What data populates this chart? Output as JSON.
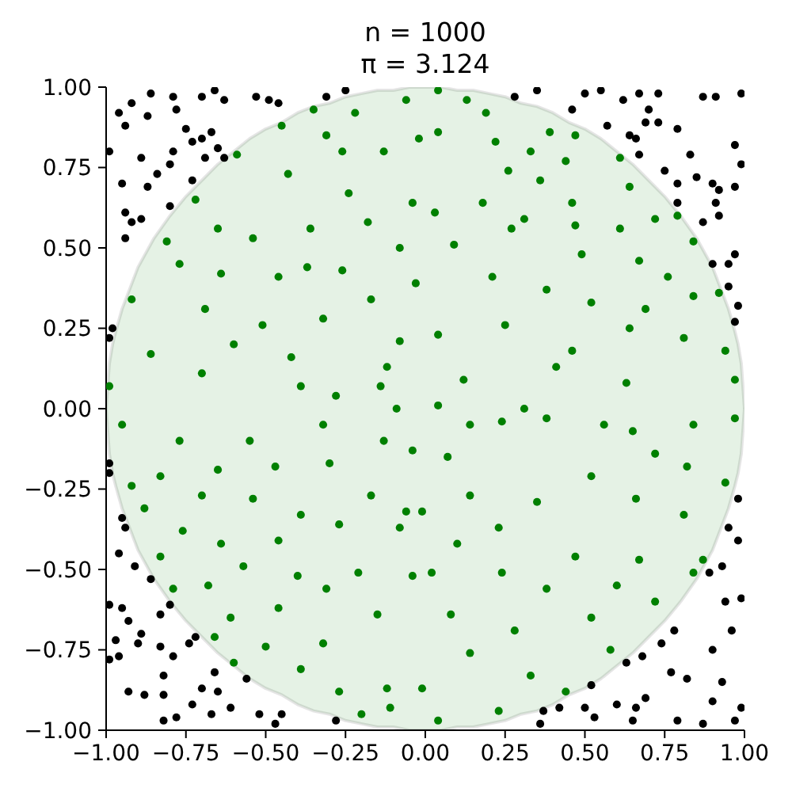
{
  "chart_data": {
    "type": "scatter",
    "title": "n = 1000",
    "subtitle": "π = 3.124",
    "marker": "circle",
    "xlim": [
      -1,
      1
    ],
    "ylim": [
      -1,
      1
    ],
    "xticks": [
      {
        "value": -1,
        "label": "−1.00"
      },
      {
        "value": -0.75,
        "label": "−0.75"
      },
      {
        "value": -0.5,
        "label": "−0.50"
      },
      {
        "value": -0.25,
        "label": "−0.25"
      },
      {
        "value": 0,
        "label": "0.00"
      },
      0.25,
      {
        "value": 0.5,
        "label": "0.50"
      },
      0.75,
      {
        "value": 1,
        "label": "1.00"
      }
    ],
    "yticks": [
      {
        "value": -1,
        "label": "−1.00"
      },
      {
        "value": -0.75,
        "label": "−0.75"
      },
      {
        "value": -0.5,
        "label": "−0.50"
      },
      {
        "value": -0.25,
        "label": "−0.25"
      },
      {
        "value": 0,
        "label": "0.00"
      },
      0.25,
      {
        "value": 0.5,
        "label": "0.50"
      },
      0.75,
      {
        "value": 1,
        "label": "1.00"
      }
    ],
    "series": [
      {
        "type": "area",
        "color": "#e5f2e5",
        "marker": "none",
        "x": [
          -1,
          -0.99,
          -0.98,
          -0.97,
          -0.95,
          -0.9,
          -0.85,
          -0.8,
          -0.75,
          -0.7,
          -0.65,
          -0.6,
          -0.55,
          -0.5,
          -0.45,
          -0.4,
          -0.35,
          -0.3,
          -0.25,
          -0.2,
          -0.15,
          -0.1,
          -0.05,
          0,
          0.05,
          0.1,
          0.15,
          0.2,
          0.25,
          0.3,
          0.35,
          0.4,
          0.45,
          0.5,
          0.55,
          0.6,
          0.65,
          0.7,
          0.75,
          0.8,
          0.85,
          0.9,
          0.95,
          0.97,
          0.98,
          0.99,
          1
        ],
        "values": [
          0,
          0.14,
          0.2,
          0.24,
          0.31,
          0.44,
          0.53,
          0.6,
          0.66,
          0.71,
          0.76,
          0.8,
          0.84,
          0.87,
          0.89,
          0.92,
          0.94,
          0.95,
          0.97,
          0.98,
          0.99,
          0.99,
          1,
          1,
          1,
          0.99,
          0.99,
          0.98,
          0.97,
          0.95,
          0.94,
          0.92,
          0.89,
          0.87,
          0.84,
          0.8,
          0.76,
          0.71,
          0.66,
          0.6,
          0.53,
          0.44,
          0.31,
          0.24,
          0.2,
          0.14,
          0
        ]
      },
      {
        "type": "area",
        "color": "#e5f2e5",
        "marker": "none",
        "x": [
          -1,
          -0.99,
          -0.98,
          -0.97,
          -0.95,
          -0.9,
          -0.85,
          -0.8,
          -0.75,
          -0.7,
          -0.65,
          -0.6,
          -0.55,
          -0.5,
          -0.45,
          -0.4,
          -0.35,
          -0.3,
          -0.25,
          -0.2,
          -0.15,
          -0.1,
          -0.05,
          0,
          0.05,
          0.1,
          0.15,
          0.2,
          0.25,
          0.3,
          0.35,
          0.4,
          0.45,
          0.5,
          0.55,
          0.6,
          0.65,
          0.7,
          0.75,
          0.8,
          0.85,
          0.9,
          0.95,
          0.97,
          0.98,
          0.99,
          1
        ],
        "values": [
          0,
          -0.14,
          -0.2,
          -0.24,
          -0.31,
          -0.44,
          -0.53,
          -0.6,
          -0.66,
          -0.71,
          -0.76,
          -0.8,
          -0.84,
          -0.87,
          -0.89,
          -0.92,
          -0.94,
          -0.95,
          -0.97,
          -0.98,
          -0.99,
          -0.99,
          -1,
          -1,
          -1,
          -0.99,
          -0.99,
          -0.98,
          -0.97,
          -0.95,
          -0.94,
          -0.92,
          -0.89,
          -0.87,
          -0.84,
          -0.8,
          -0.76,
          -0.71,
          -0.66,
          -0.6,
          -0.53,
          -0.44,
          -0.31,
          -0.24,
          -0.2,
          -0.14,
          0
        ]
      },
      {
        "color": "#008000",
        "x": [
          -0.35,
          -0.22,
          -0.06,
          -0.31,
          -0.45,
          -0.59,
          -0.43,
          -0.26,
          -0.13,
          -0.02,
          -0.04,
          -0.24,
          -0.18,
          -0.36,
          -0.54,
          -0.65,
          -0.72,
          -0.81,
          -0.77,
          -0.64,
          -0.46,
          -0.37,
          -0.26,
          -0.08,
          -0.17,
          -0.92,
          -0.69,
          -0.51,
          -0.32,
          -0.08,
          -0.12,
          -0.42,
          -0.6,
          -0.86,
          -0.99,
          -0.7,
          -0.39,
          -0.14,
          -0.28,
          -0.03,
          0.04,
          0.13,
          0.19,
          0.04,
          0.22,
          0.33,
          0.39,
          0.47,
          0.61,
          0.44,
          0.26,
          0.36,
          0.18,
          0.03,
          0.31,
          0.46,
          0.64,
          0.72,
          0.79,
          0.09,
          0.27,
          0.47,
          0.61,
          0.49,
          0.67,
          0.76,
          0.84,
          0.84,
          0.21,
          0.38,
          0.52,
          0.69,
          0.92,
          0.25,
          0.04,
          0.46,
          0.64,
          0.81,
          0.94,
          0.12,
          0.41,
          0.63,
          0.97,
          0.31,
          -0.95,
          -0.77,
          -0.55,
          -0.32,
          -0.09,
          -0.92,
          -0.83,
          -0.65,
          -0.47,
          -0.3,
          -0.13,
          -0.04,
          -0.7,
          -0.88,
          -0.54,
          -0.39,
          -0.17,
          -0.06,
          -0.76,
          -0.64,
          -0.46,
          -0.27,
          -0.08,
          -0.83,
          -0.68,
          -0.57,
          -0.4,
          -0.21,
          -0.04,
          -0.79,
          -0.61,
          -0.46,
          -0.31,
          -0.15,
          -0.66,
          -0.5,
          -0.32,
          -0.39,
          -0.27,
          -0.12,
          -0.11,
          -0.2,
          -0.6,
          0.04,
          0.14,
          0.07,
          0.24,
          0.38,
          0.56,
          0.65,
          0.84,
          0.97,
          0.72,
          0.82,
          0.94,
          0.14,
          0.35,
          0.52,
          0.66,
          0.81,
          -0.01,
          0.23,
          0.1,
          0.47,
          0.67,
          0.87,
          0.02,
          0.24,
          0.38,
          0.6,
          0.08,
          0.28,
          0.52,
          0.14,
          0.33,
          0.58,
          -0.01,
          0.23,
          0.44,
          0.04,
          0.72,
          0.84
        ],
        "values": [
          0.93,
          0.92,
          0.96,
          0.85,
          0.88,
          0.79,
          0.73,
          0.8,
          0.8,
          0.84,
          0.64,
          0.67,
          0.58,
          0.56,
          0.53,
          0.56,
          0.65,
          0.52,
          0.45,
          0.42,
          0.41,
          0.44,
          0.43,
          0.5,
          0.34,
          0.34,
          0.31,
          0.26,
          0.28,
          0.21,
          0.13,
          0.16,
          0.2,
          0.17,
          0.07,
          0.11,
          0.07,
          0.07,
          0.04,
          0.39,
          0.99,
          0.96,
          0.92,
          0.86,
          0.83,
          0.8,
          0.86,
          0.85,
          0.78,
          0.77,
          0.74,
          0.71,
          0.64,
          0.61,
          0.59,
          0.64,
          0.69,
          0.59,
          0.6,
          0.51,
          0.56,
          0.57,
          0.56,
          0.48,
          0.46,
          0.41,
          0.52,
          0.35,
          0.41,
          0.37,
          0.33,
          0.31,
          0.36,
          0.26,
          0.23,
          0.18,
          0.25,
          0.22,
          0.18,
          0.09,
          0.13,
          0.08,
          0.09,
          0.0,
          -0.05,
          -0.1,
          -0.1,
          -0.05,
          0.0,
          -0.24,
          -0.21,
          -0.19,
          -0.18,
          -0.17,
          -0.1,
          -0.13,
          -0.27,
          -0.31,
          -0.28,
          -0.33,
          -0.27,
          -0.32,
          -0.38,
          -0.42,
          -0.41,
          -0.36,
          -0.37,
          -0.46,
          -0.55,
          -0.49,
          -0.52,
          -0.51,
          -0.52,
          -0.56,
          -0.65,
          -0.62,
          -0.56,
          -0.64,
          -0.71,
          -0.74,
          -0.73,
          -0.81,
          -0.88,
          -0.87,
          -0.93,
          -0.95,
          -0.79,
          0.01,
          -0.05,
          -0.15,
          -0.04,
          -0.03,
          -0.05,
          -0.07,
          -0.05,
          -0.03,
          -0.14,
          -0.18,
          -0.23,
          -0.27,
          -0.29,
          -0.21,
          -0.28,
          -0.33,
          -0.32,
          -0.37,
          -0.42,
          -0.46,
          -0.47,
          -0.47,
          -0.51,
          -0.51,
          -0.56,
          -0.55,
          -0.64,
          -0.69,
          -0.65,
          -0.76,
          -0.83,
          -0.75,
          -0.87,
          -0.94,
          -0.88,
          -0.97,
          -0.6,
          -0.51
        ]
      },
      {
        "color": "#000000",
        "x": [
          -0.86,
          -0.79,
          -0.7,
          -0.66,
          -0.63,
          -0.53,
          -0.49,
          -0.46,
          -0.92,
          -0.96,
          -0.94,
          -0.87,
          -0.78,
          -0.75,
          -0.73,
          -0.7,
          -0.67,
          -0.65,
          -0.69,
          -0.63,
          -0.79,
          -0.89,
          -0.99,
          -0.8,
          -0.84,
          -0.87,
          -0.95,
          -0.73,
          -0.8,
          -0.89,
          -0.94,
          -0.92,
          -0.94,
          -0.98,
          -0.99,
          -0.31,
          -0.25,
          0.28,
          0.35,
          0.46,
          0.5,
          0.55,
          0.62,
          0.67,
          0.7,
          0.69,
          0.73,
          0.79,
          0.87,
          0.91,
          0.99,
          0.57,
          0.64,
          0.67,
          0.75,
          0.79,
          0.83,
          0.85,
          0.9,
          0.92,
          0.97,
          0.99,
          0.97,
          0.91,
          0.87,
          0.92,
          0.79,
          0.97,
          0.95,
          0.9,
          0.95,
          0.98,
          0.97,
          0.66,
          0.73,
          -0.99,
          -0.99,
          -0.95,
          -0.94,
          -0.96,
          -0.91,
          -0.86,
          -0.99,
          -0.95,
          -0.93,
          -0.89,
          -0.97,
          -0.9,
          -0.96,
          -0.99,
          -0.83,
          -0.79,
          -0.8,
          -0.83,
          -0.74,
          -0.72,
          -0.66,
          -0.7,
          -0.65,
          -0.61,
          -0.67,
          -0.73,
          -0.82,
          -0.82,
          -0.93,
          -0.88,
          -0.82,
          -0.78,
          -0.56,
          -0.52,
          -0.47,
          -0.45,
          -0.28,
          0.98,
          0.95,
          0.98,
          0.89,
          0.93,
          0.94,
          0.99,
          0.96,
          0.9,
          0.78,
          0.74,
          0.68,
          0.63,
          0.77,
          0.82,
          0.93,
          0.9,
          0.99,
          0.79,
          0.87,
          0.97,
          0.66,
          0.65,
          0.6,
          0.53,
          0.5,
          0.52,
          0.42,
          0.37,
          0.36,
          0.69
        ],
        "values": [
          0.98,
          0.97,
          0.97,
          0.99,
          0.96,
          0.97,
          0.96,
          0.95,
          0.95,
          0.92,
          0.88,
          0.91,
          0.93,
          0.87,
          0.83,
          0.84,
          0.86,
          0.81,
          0.78,
          0.78,
          0.8,
          0.78,
          0.8,
          0.76,
          0.73,
          0.69,
          0.7,
          0.71,
          0.63,
          0.59,
          0.61,
          0.58,
          0.53,
          0.25,
          0.22,
          0.97,
          0.99,
          0.97,
          0.99,
          0.93,
          0.98,
          0.99,
          0.96,
          0.98,
          0.93,
          0.89,
          0.89,
          0.87,
          0.97,
          0.97,
          0.98,
          0.88,
          0.85,
          0.79,
          0.74,
          0.7,
          0.79,
          0.72,
          0.7,
          0.68,
          0.69,
          0.76,
          0.82,
          0.64,
          0.58,
          0.6,
          0.64,
          0.48,
          0.45,
          0.45,
          0.38,
          0.32,
          0.27,
          0.84,
          0.98,
          -0.17,
          -0.2,
          -0.34,
          -0.37,
          -0.45,
          -0.49,
          -0.53,
          -0.61,
          -0.62,
          -0.66,
          -0.7,
          -0.72,
          -0.73,
          -0.77,
          -0.78,
          -0.74,
          -0.77,
          -0.61,
          -0.64,
          -0.73,
          -0.71,
          -0.82,
          -0.87,
          -0.88,
          -0.93,
          -0.95,
          -0.92,
          -0.83,
          -0.89,
          -0.88,
          -0.89,
          -0.97,
          -0.96,
          -0.84,
          -0.95,
          -0.98,
          -0.95,
          -0.97,
          -0.28,
          -0.37,
          -0.41,
          -0.51,
          -0.49,
          -0.6,
          -0.59,
          -0.69,
          -0.75,
          -0.69,
          -0.73,
          -0.77,
          -0.79,
          -0.82,
          -0.84,
          -0.85,
          -0.91,
          -0.93,
          -0.97,
          -0.98,
          -0.97,
          -0.93,
          -0.97,
          -0.92,
          -0.96,
          -0.93,
          -0.86,
          -0.93,
          -0.94,
          -0.98,
          -0.9
        ]
      }
    ]
  }
}
